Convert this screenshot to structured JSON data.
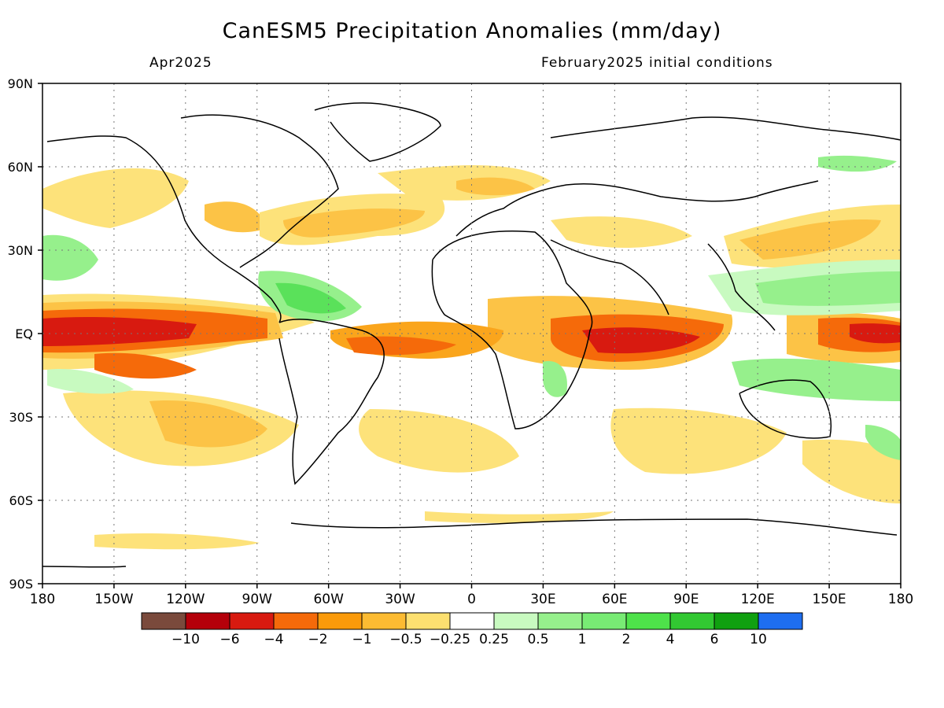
{
  "header": {
    "title": "CanESM5 Precipitation Anomalies (mm/day)",
    "valid_month": "Apr2025",
    "initial_conditions": "February2025 initial conditions"
  },
  "map": {
    "lon_range": [
      -180,
      180
    ],
    "lat_range": [
      -90,
      90
    ],
    "lon_ticks": [
      {
        "value": -180,
        "label": "180"
      },
      {
        "value": -150,
        "label": "150W"
      },
      {
        "value": -120,
        "label": "120W"
      },
      {
        "value": -90,
        "label": "90W"
      },
      {
        "value": -60,
        "label": "60W"
      },
      {
        "value": -30,
        "label": "30W"
      },
      {
        "value": 0,
        "label": "0"
      },
      {
        "value": 30,
        "label": "30E"
      },
      {
        "value": 60,
        "label": "60E"
      },
      {
        "value": 90,
        "label": "90E"
      },
      {
        "value": 120,
        "label": "120E"
      },
      {
        "value": 150,
        "label": "150E"
      },
      {
        "value": 180,
        "label": "180"
      }
    ],
    "lat_ticks": [
      {
        "value": 90,
        "label": "90N"
      },
      {
        "value": 60,
        "label": "60N"
      },
      {
        "value": 30,
        "label": "30N"
      },
      {
        "value": 0,
        "label": "EQ"
      },
      {
        "value": -30,
        "label": "30S"
      },
      {
        "value": -60,
        "label": "60S"
      },
      {
        "value": -90,
        "label": "90S"
      }
    ],
    "grid": true,
    "colors": {
      "dry_strong": "#d81a10",
      "dry_mod": "#f56a0a",
      "dry_light": "#faa51c",
      "dry_weak": "#fcc346",
      "dry_faint": "#fde27a",
      "wet_faint": "#c8fac0",
      "wet_light": "#96f08c",
      "wet_mod": "#5ae15a",
      "land_line": "#000000"
    }
  },
  "legend": {
    "colors": [
      "#7a4a3c",
      "#b4000a",
      "#d81a10",
      "#f56a0a",
      "#fa9a0a",
      "#fcbb32",
      "#fde070",
      "#ffffff",
      "#c8fac0",
      "#96f08c",
      "#78eb74",
      "#4ee24a",
      "#32c832",
      "#10a010",
      "#1e6ef0"
    ],
    "labels": [
      "-10",
      "-6",
      "-4",
      "-2",
      "-1",
      "-0.5",
      "-0.25",
      "0.25",
      "0.5",
      "1",
      "2",
      "4",
      "6",
      "10"
    ]
  }
}
